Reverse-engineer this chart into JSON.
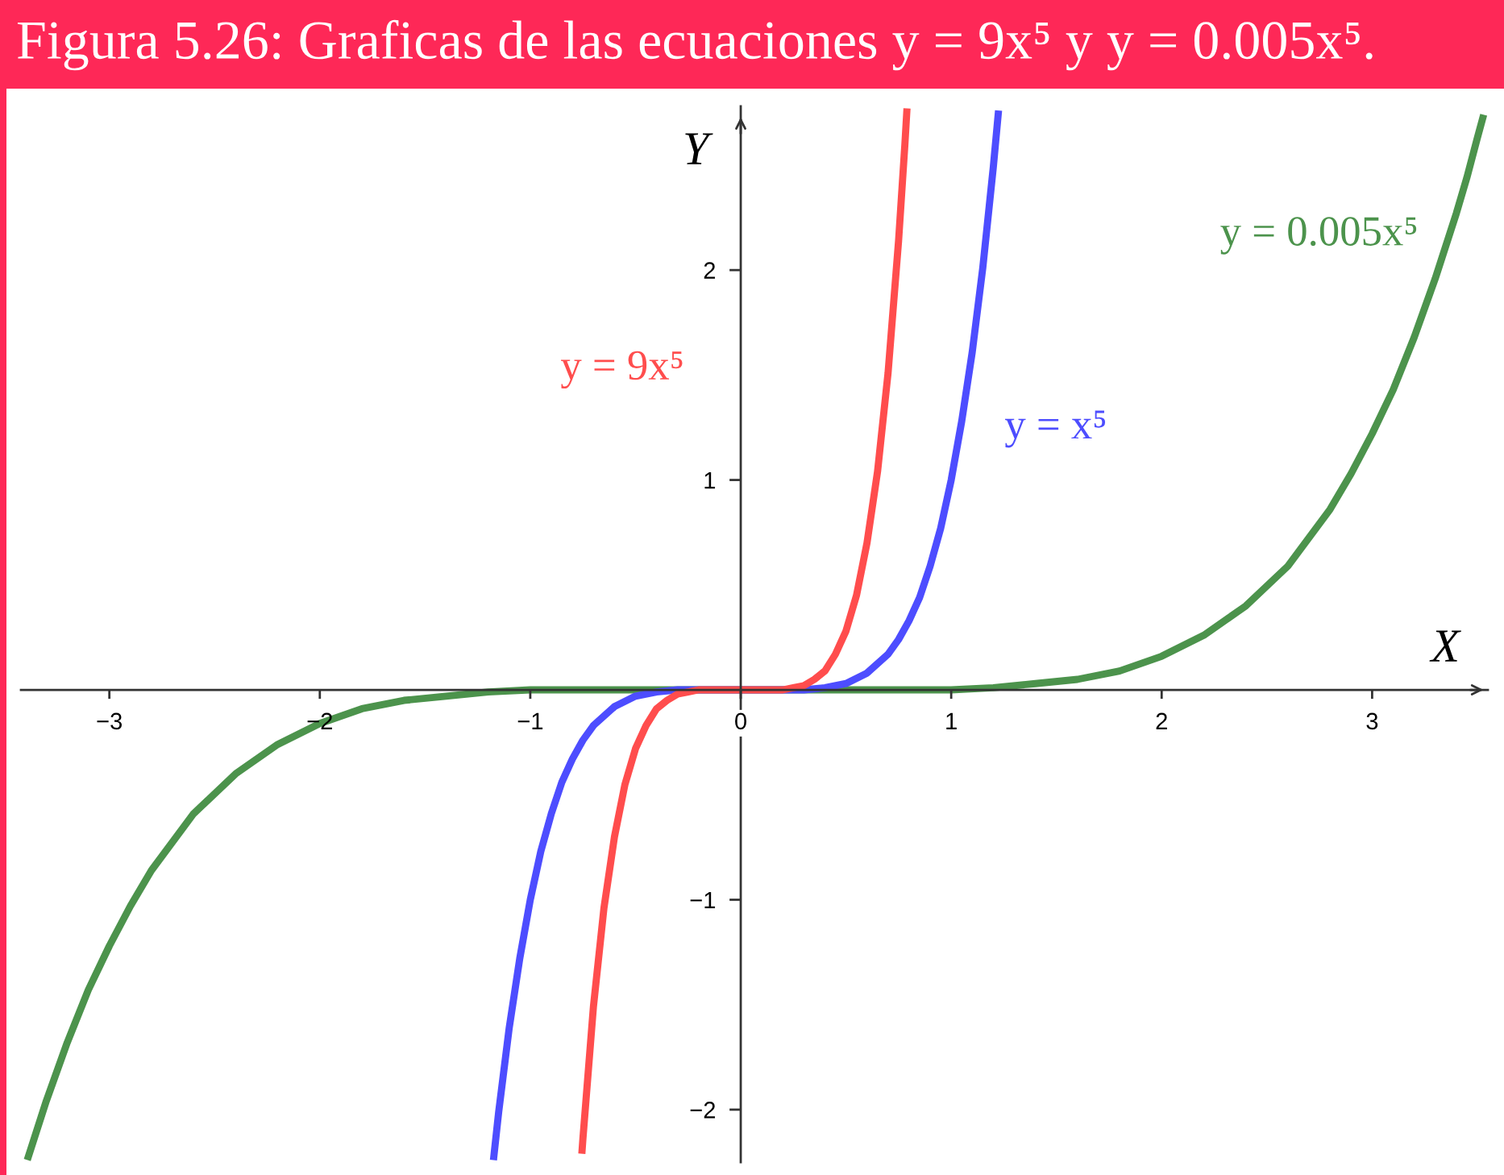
{
  "chart_data": {
    "type": "line",
    "title": "Figura 5.26: Graficas de las ecuaciones y = 9x⁵ y y = 0.005x⁵.",
    "xlabel": "X",
    "ylabel": "Y",
    "xlim": [
      -3.42,
      3.55
    ],
    "ylim": [
      -2.25,
      2.78
    ],
    "xticks": [
      -3,
      -2,
      -1,
      0,
      1,
      2,
      3
    ],
    "yticks": [
      -2,
      -1,
      1,
      2
    ],
    "series": [
      {
        "name": "y = 0.005x⁵",
        "color": "#4c934c",
        "x": [
          -3.39,
          -3.3,
          -3.2,
          -3.1,
          -3.0,
          -2.9,
          -2.8,
          -2.6,
          -2.4,
          -2.2,
          -2.0,
          -1.8,
          -1.6,
          -1.4,
          -1.2,
          -1.0,
          -0.5,
          0,
          0.5,
          1.0,
          1.2,
          1.4,
          1.6,
          1.8,
          2.0,
          2.2,
          2.4,
          2.6,
          2.8,
          2.9,
          3.0,
          3.1,
          3.2,
          3.3,
          3.4,
          3.45,
          3.5,
          3.53
        ],
        "values": [
          -2.24,
          -1.96,
          -1.68,
          -1.43,
          -1.22,
          -1.03,
          -0.86,
          -0.59,
          -0.4,
          -0.26,
          -0.16,
          -0.09,
          -0.05,
          -0.03,
          -0.01,
          0,
          0,
          0,
          0,
          0,
          0.01,
          0.03,
          0.05,
          0.09,
          0.16,
          0.26,
          0.4,
          0.59,
          0.86,
          1.03,
          1.22,
          1.43,
          1.68,
          1.96,
          2.27,
          2.44,
          2.63,
          2.74
        ]
      },
      {
        "name": "y = x⁵",
        "color": "#4d4dff",
        "x": [
          -1.175,
          -1.15,
          -1.1,
          -1.05,
          -1.0,
          -0.95,
          -0.9,
          -0.85,
          -0.8,
          -0.75,
          -0.7,
          -0.6,
          -0.5,
          -0.4,
          -0.3,
          0,
          0.3,
          0.4,
          0.5,
          0.6,
          0.7,
          0.75,
          0.8,
          0.85,
          0.9,
          0.95,
          1.0,
          1.05,
          1.1,
          1.15,
          1.2,
          1.225
        ],
        "values": [
          -2.24,
          -2.01,
          -1.61,
          -1.28,
          -1,
          -0.77,
          -0.59,
          -0.44,
          -0.33,
          -0.24,
          -0.17,
          -0.08,
          -0.03,
          -0.01,
          0,
          0,
          0,
          0.01,
          0.03,
          0.08,
          0.17,
          0.24,
          0.33,
          0.44,
          0.59,
          0.77,
          1,
          1.28,
          1.61,
          2.01,
          2.49,
          2.76
        ]
      },
      {
        "name": "y = 9x⁵",
        "color": "#ff4d4d",
        "x": [
          -0.755,
          -0.75,
          -0.7,
          -0.65,
          -0.6,
          -0.55,
          -0.5,
          -0.45,
          -0.4,
          -0.35,
          -0.3,
          -0.25,
          -0.2,
          0,
          0.2,
          0.25,
          0.3,
          0.35,
          0.4,
          0.45,
          0.5,
          0.55,
          0.6,
          0.65,
          0.7,
          0.75,
          0.78,
          0.79
        ],
        "values": [
          -2.21,
          -2.14,
          -1.51,
          -1.04,
          -0.7,
          -0.45,
          -0.28,
          -0.17,
          -0.09,
          -0.05,
          -0.02,
          -0.01,
          0,
          0,
          0,
          0.01,
          0.02,
          0.05,
          0.09,
          0.17,
          0.28,
          0.45,
          0.7,
          1.04,
          1.51,
          2.14,
          2.6,
          2.77
        ]
      }
    ]
  }
}
